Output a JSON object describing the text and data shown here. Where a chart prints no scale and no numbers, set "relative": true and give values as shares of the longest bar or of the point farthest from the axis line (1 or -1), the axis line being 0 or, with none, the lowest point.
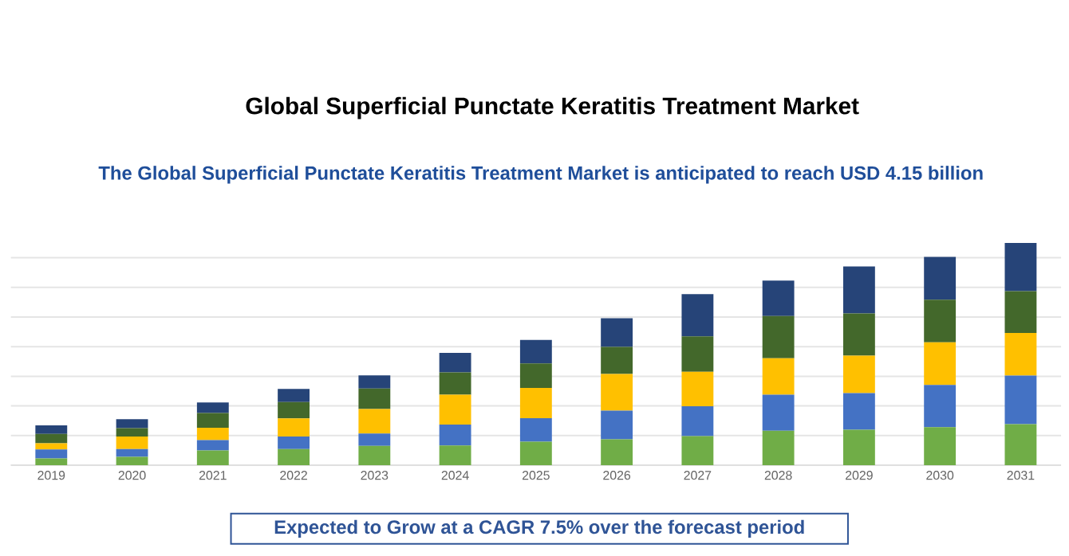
{
  "chart_data": {
    "type": "bar",
    "stacked": true,
    "relative": true,
    "grid": "y",
    "title": "Global Superficial Punctate Keratitis Treatment Market",
    "subtitle": "The Global Superficial Punctate Keratitis Treatment Market is anticipated to reach USD 4.15 billion",
    "annotations": [
      "Expected to Grow at a CAGR 7.5% over the forecast period"
    ],
    "categories": [
      "2019",
      "2020",
      "2021",
      "2022",
      "2023",
      "2024",
      "2025",
      "2026",
      "2027",
      "2028",
      "2029",
      "2030",
      "2031"
    ],
    "series": [
      {
        "color": "#70ad47",
        "values": [
          0.031,
          0.038,
          0.066,
          0.073,
          0.087,
          0.089,
          0.106,
          0.117,
          0.131,
          0.155,
          0.16,
          0.171,
          0.185
        ]
      },
      {
        "color": "#4472c4",
        "values": [
          0.04,
          0.035,
          0.047,
          0.056,
          0.056,
          0.094,
          0.106,
          0.129,
          0.134,
          0.162,
          0.164,
          0.19,
          0.218
        ]
      },
      {
        "color": "#ffc000",
        "values": [
          0.028,
          0.056,
          0.056,
          0.082,
          0.11,
          0.134,
          0.136,
          0.164,
          0.155,
          0.164,
          0.169,
          0.192,
          0.192
        ]
      },
      {
        "color": "#43682b",
        "values": [
          0.042,
          0.038,
          0.066,
          0.073,
          0.092,
          0.101,
          0.11,
          0.122,
          0.16,
          0.19,
          0.19,
          0.192,
          0.188
        ]
      },
      {
        "color": "#264478",
        "values": [
          0.038,
          0.04,
          0.047,
          0.059,
          0.059,
          0.087,
          0.106,
          0.129,
          0.19,
          0.16,
          0.211,
          0.192,
          0.217
        ]
      }
    ]
  }
}
